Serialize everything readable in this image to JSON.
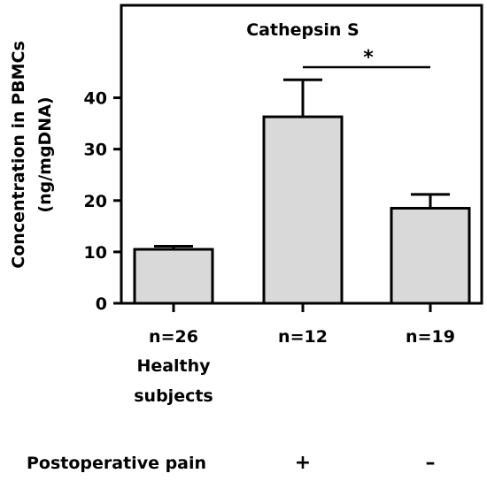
{
  "chart_data": {
    "type": "bar",
    "title": "Cathepsin S",
    "ylabel_lines": [
      "Concentration in PBMCs",
      "(ng/mgDNA)"
    ],
    "xlabel": "",
    "ylim": [
      0,
      58
    ],
    "yticks": [
      0,
      10,
      20,
      30,
      40
    ],
    "categories": [
      {
        "n_label": "n=26",
        "group_lines": [
          "Healthy",
          "subjects"
        ],
        "pain_mark": ""
      },
      {
        "n_label": "n=12",
        "group_lines": [],
        "pain_mark": "+"
      },
      {
        "n_label": "n=19",
        "group_lines": [],
        "pain_mark": "–"
      }
    ],
    "series": [
      {
        "values": [
          10.5,
          36.3,
          18.5
        ],
        "error_upper": [
          0.6,
          7.2,
          2.7
        ]
      }
    ],
    "significance": [
      {
        "from": 1,
        "to": 2,
        "label": "*"
      }
    ],
    "row_label": "Postoperative pain",
    "grid": false,
    "legend": "none",
    "colors": {
      "bar_fill": "#d9d9d9",
      "stroke": "#000000",
      "background": "#ffffff"
    }
  }
}
